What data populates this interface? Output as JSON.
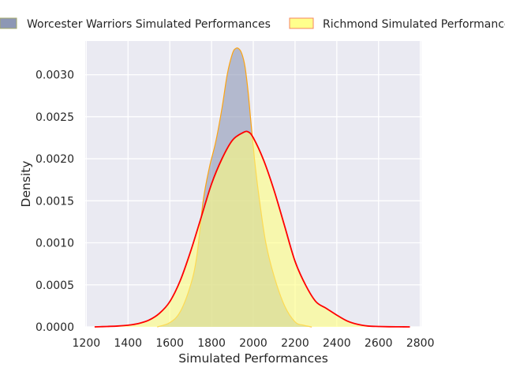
{
  "chart_data": {
    "type": "area",
    "title": "",
    "xlabel": "Simulated Performances",
    "ylabel": "Density",
    "xlim": [
      1195,
      2805
    ],
    "ylim": [
      0,
      0.0034
    ],
    "x_ticks": [
      1200,
      1400,
      1600,
      1800,
      2000,
      2200,
      2400,
      2600,
      2800
    ],
    "x_tick_labels": [
      "1200",
      "1400",
      "1600",
      "1800",
      "2000",
      "2200",
      "2400",
      "2600",
      "2800"
    ],
    "y_ticks": [
      0,
      0.0005,
      0.001,
      0.0015,
      0.002,
      0.0025,
      0.003
    ],
    "y_tick_labels": [
      "0.0000",
      "0.0005",
      "0.0010",
      "0.0015",
      "0.0020",
      "0.0025",
      "0.0030"
    ],
    "grid": true,
    "legend_position": "top-center",
    "background": "#eaeaf2",
    "series": [
      {
        "name": "Worcester Warriors Simulated Performances",
        "fill_color": "#8d97b5",
        "edge_color": "#fca311",
        "legend_edge_color": "#a3a86a",
        "x": [
          1540,
          1600,
          1650,
          1700,
          1730,
          1760,
          1790,
          1820,
          1850,
          1875,
          1900,
          1915,
          1930,
          1945,
          1960,
          1975,
          1990,
          2010,
          2030,
          2060,
          2100,
          2150,
          2200,
          2240,
          2280
        ],
        "y": [
          0,
          5e-05,
          0.00018,
          0.0005,
          0.00085,
          0.0015,
          0.0019,
          0.0022,
          0.0026,
          0.003,
          0.00325,
          0.00331,
          0.00331,
          0.00325,
          0.0031,
          0.0028,
          0.0024,
          0.0019,
          0.0015,
          0.001,
          0.0006,
          0.00025,
          6e-05,
          2e-05,
          0
        ]
      },
      {
        "name": "Richmond Simulated Performances",
        "fill_color": "#ffff7f",
        "edge_color": "#ff0000",
        "legend_edge_color": "#f4845f",
        "x": [
          1240,
          1300,
          1350,
          1400,
          1450,
          1500,
          1550,
          1600,
          1650,
          1700,
          1750,
          1800,
          1850,
          1900,
          1950,
          1975,
          2000,
          2050,
          2100,
          2150,
          2200,
          2250,
          2300,
          2350,
          2400,
          2450,
          2500,
          2550,
          2600,
          2650,
          2700,
          2750
        ],
        "y": [
          0,
          5e-06,
          1e-05,
          2e-05,
          4e-05,
          8e-05,
          0.00016,
          0.0003,
          0.00055,
          0.0009,
          0.0013,
          0.0017,
          0.002,
          0.00222,
          0.00231,
          0.00232,
          0.00225,
          0.00198,
          0.00162,
          0.0012,
          0.00078,
          0.0005,
          0.0003,
          0.00022,
          0.00014,
          7e-05,
          3e-05,
          1e-05,
          5e-06,
          2e-06,
          1e-06,
          0
        ]
      }
    ]
  }
}
